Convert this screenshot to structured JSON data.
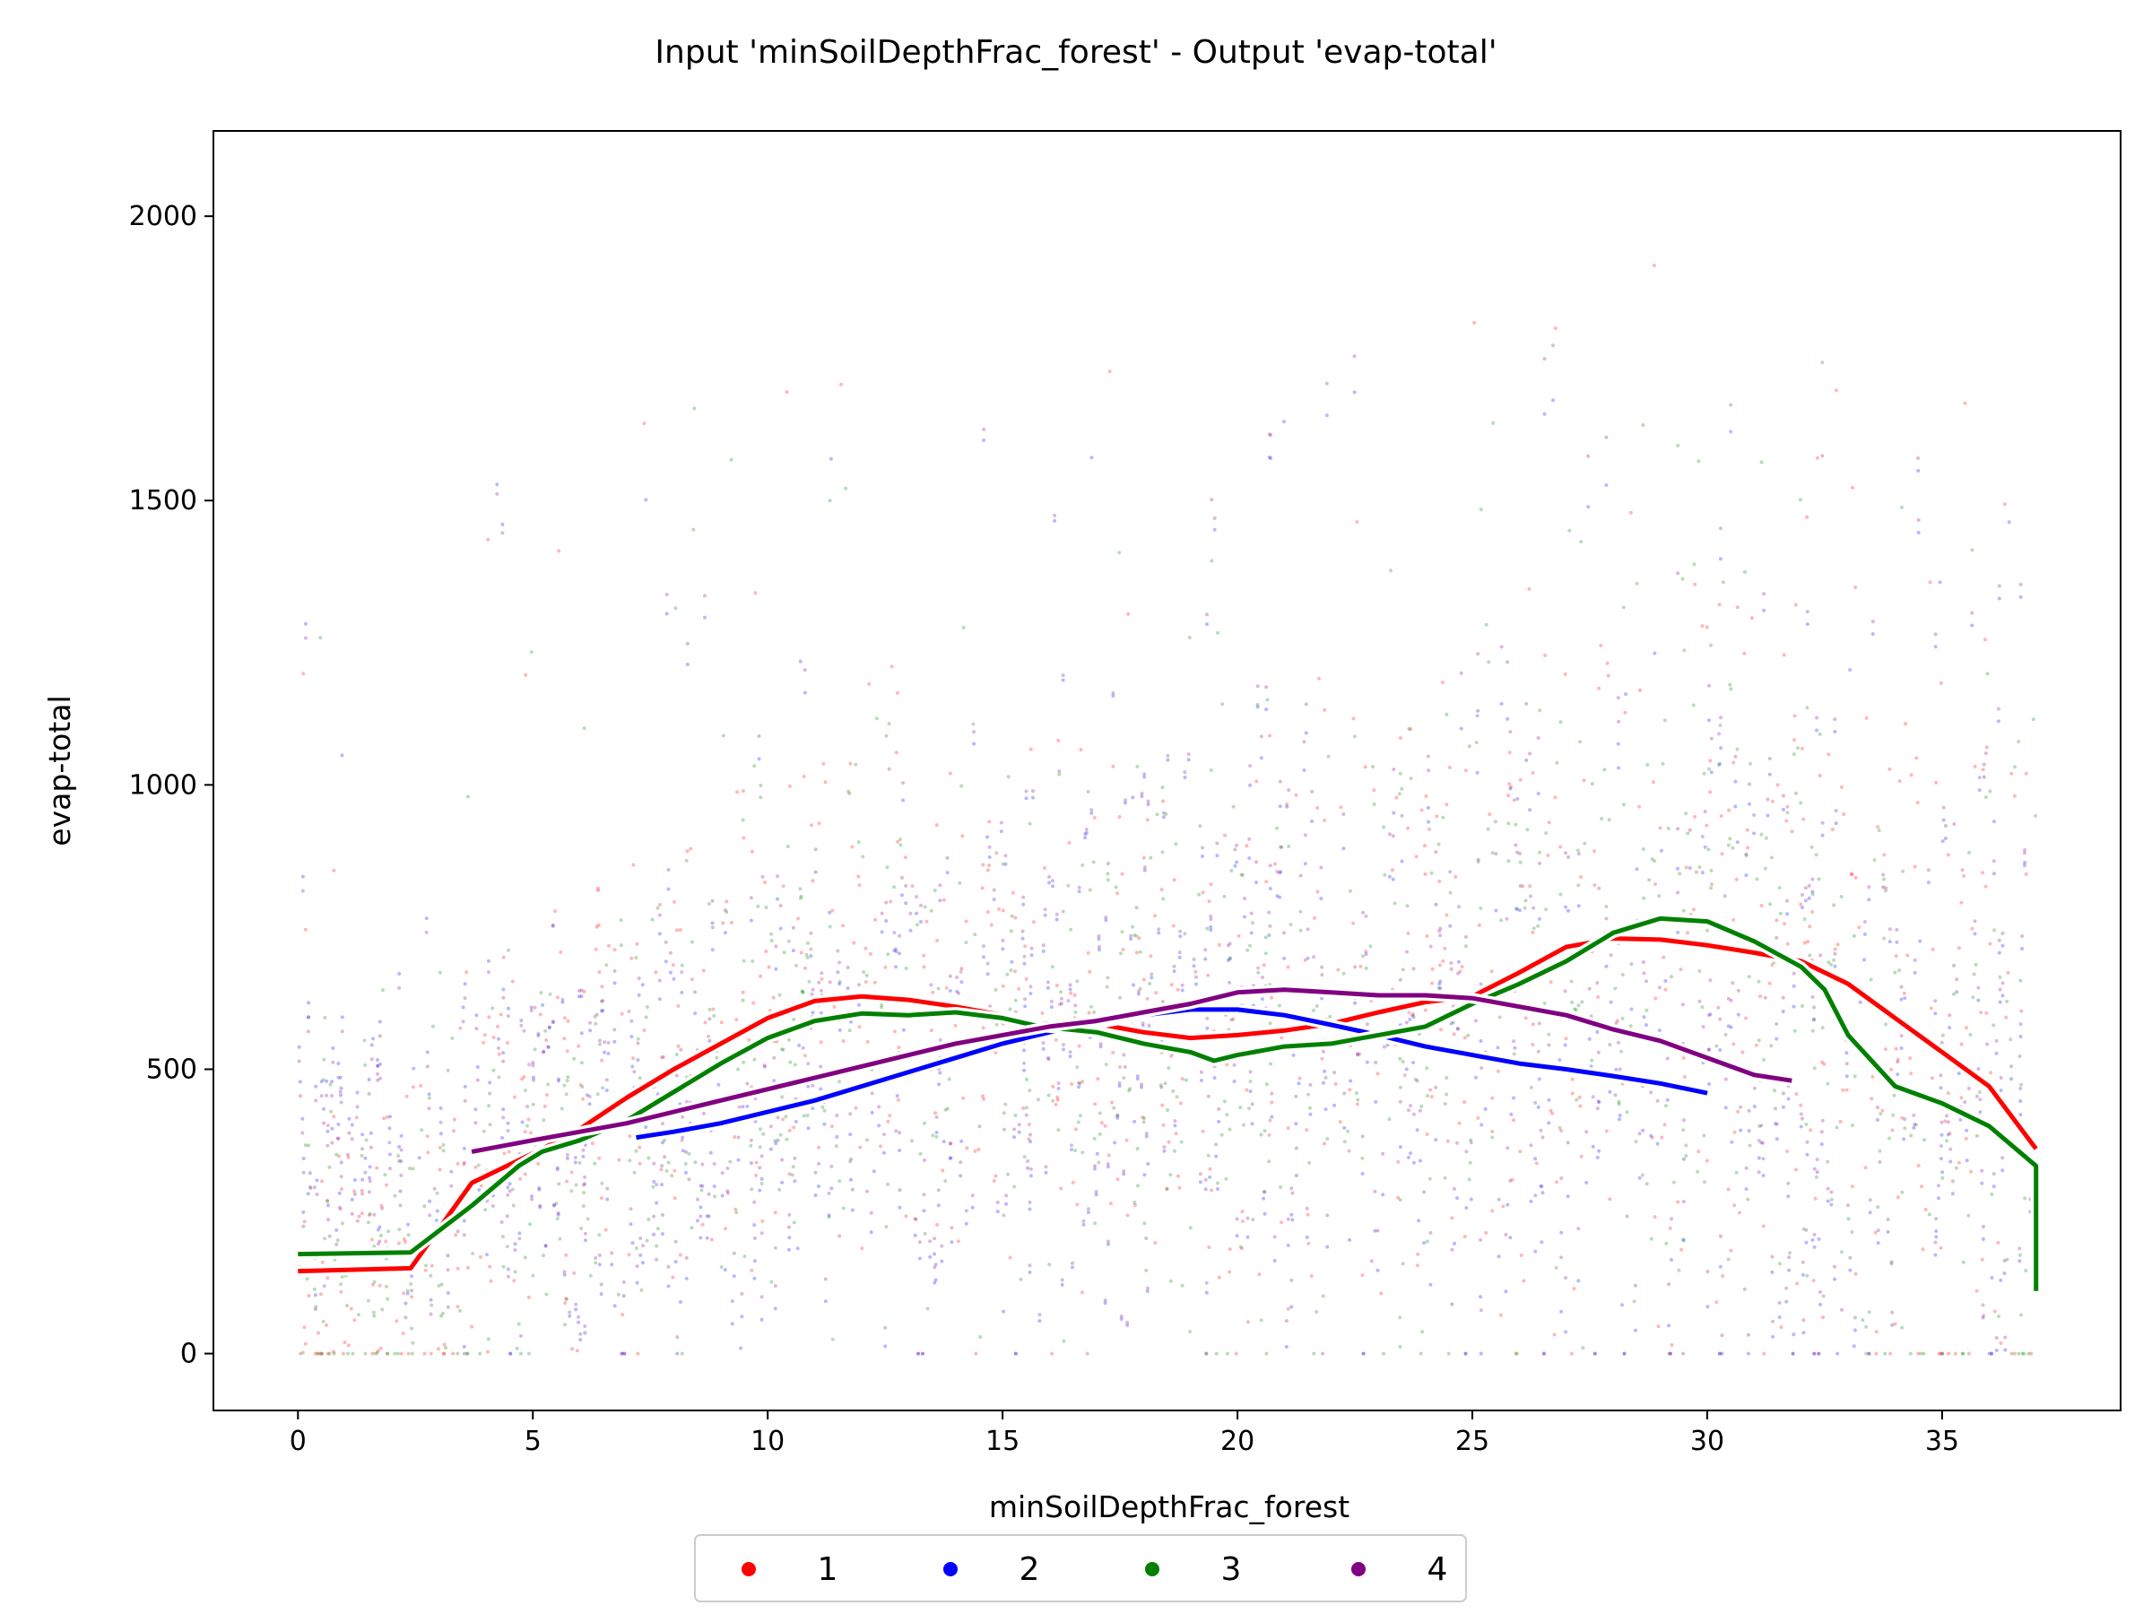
{
  "chart_data": {
    "type": "scatter",
    "title": "Input 'minSoilDepthFrac_forest' - Output 'evap-total'",
    "xlabel": "minSoilDepthFrac_forest",
    "ylabel": "evap-total",
    "xlim": [
      -1.8,
      38.8
    ],
    "ylim": [
      -100,
      2150
    ],
    "xticks": [
      0,
      5,
      10,
      15,
      20,
      25,
      30,
      35
    ],
    "yticks": [
      0,
      500,
      1000,
      1500,
      2000
    ],
    "grid": false,
    "legend_position": "bottom-center",
    "series": [
      {
        "name": "1",
        "color": "#ff0000",
        "trend": [
          [
            0,
            145
          ],
          [
            2.4,
            150
          ],
          [
            3.7,
            300
          ],
          [
            4.7,
            340
          ],
          [
            5.2,
            360
          ],
          [
            6,
            395
          ],
          [
            7,
            450
          ],
          [
            8,
            500
          ],
          [
            9,
            545
          ],
          [
            10,
            590
          ],
          [
            11,
            620
          ],
          [
            12,
            628
          ],
          [
            13,
            622
          ],
          [
            14,
            610
          ],
          [
            15,
            595
          ],
          [
            15.8,
            580
          ],
          [
            17,
            580
          ],
          [
            18,
            565
          ],
          [
            19,
            555
          ],
          [
            20,
            560
          ],
          [
            21,
            568
          ],
          [
            22,
            580
          ],
          [
            23,
            600
          ],
          [
            24,
            618
          ],
          [
            25,
            628
          ],
          [
            26,
            670
          ],
          [
            27,
            715
          ],
          [
            28,
            730
          ],
          [
            29,
            728
          ],
          [
            30,
            718
          ],
          [
            31,
            705
          ],
          [
            32,
            690
          ],
          [
            33,
            650
          ],
          [
            34,
            590
          ],
          [
            35,
            530
          ],
          [
            36,
            470
          ],
          [
            37,
            360
          ]
        ]
      },
      {
        "name": "2",
        "color": "#0000ff",
        "trend": [
          [
            7.2,
            380
          ],
          [
            8,
            390
          ],
          [
            9,
            405
          ],
          [
            10,
            425
          ],
          [
            11,
            445
          ],
          [
            12,
            470
          ],
          [
            13,
            495
          ],
          [
            14,
            520
          ],
          [
            15,
            545
          ],
          [
            16,
            565
          ],
          [
            17,
            580
          ],
          [
            18,
            595
          ],
          [
            19,
            605
          ],
          [
            20,
            605
          ],
          [
            21,
            595
          ],
          [
            22,
            578
          ],
          [
            23,
            560
          ],
          [
            24,
            540
          ],
          [
            25,
            525
          ],
          [
            26,
            510
          ],
          [
            27,
            500
          ],
          [
            28,
            488
          ],
          [
            29,
            475
          ],
          [
            30,
            458
          ]
        ]
      },
      {
        "name": "3",
        "color": "#008000",
        "trend": [
          [
            0,
            175
          ],
          [
            2.4,
            178
          ],
          [
            3.7,
            260
          ],
          [
            4.7,
            330
          ],
          [
            5.2,
            355
          ],
          [
            6,
            375
          ],
          [
            7,
            410
          ],
          [
            8,
            460
          ],
          [
            9,
            510
          ],
          [
            10,
            555
          ],
          [
            11,
            585
          ],
          [
            12,
            598
          ],
          [
            13,
            595
          ],
          [
            14,
            600
          ],
          [
            15,
            590
          ],
          [
            15.8,
            575
          ],
          [
            17,
            565
          ],
          [
            18,
            545
          ],
          [
            19,
            530
          ],
          [
            19.5,
            515
          ],
          [
            20,
            525
          ],
          [
            21,
            540
          ],
          [
            22,
            545
          ],
          [
            23,
            560
          ],
          [
            24,
            575
          ],
          [
            25,
            615
          ],
          [
            26,
            650
          ],
          [
            27,
            690
          ],
          [
            28,
            740
          ],
          [
            29,
            765
          ],
          [
            30,
            760
          ],
          [
            31,
            725
          ],
          [
            32,
            680
          ],
          [
            32.5,
            640
          ],
          [
            33,
            560
          ],
          [
            34,
            470
          ],
          [
            35,
            440
          ],
          [
            36,
            400
          ],
          [
            37,
            330
          ],
          [
            37,
            110
          ]
        ]
      },
      {
        "name": "4",
        "color": "#800080",
        "trend": [
          [
            3.7,
            355
          ],
          [
            5,
            375
          ],
          [
            6,
            390
          ],
          [
            7,
            405
          ],
          [
            8,
            425
          ],
          [
            9,
            445
          ],
          [
            10,
            465
          ],
          [
            11,
            485
          ],
          [
            12,
            505
          ],
          [
            13,
            525
          ],
          [
            14,
            545
          ],
          [
            15,
            560
          ],
          [
            16,
            575
          ],
          [
            17,
            585
          ],
          [
            18,
            600
          ],
          [
            19,
            615
          ],
          [
            20,
            635
          ],
          [
            21,
            640
          ],
          [
            22,
            635
          ],
          [
            23,
            630
          ],
          [
            24,
            630
          ],
          [
            25,
            625
          ],
          [
            26,
            610
          ],
          [
            27,
            595
          ],
          [
            28,
            570
          ],
          [
            29,
            550
          ],
          [
            30,
            520
          ],
          [
            31,
            490
          ],
          [
            31.8,
            480
          ]
        ]
      }
    ]
  }
}
